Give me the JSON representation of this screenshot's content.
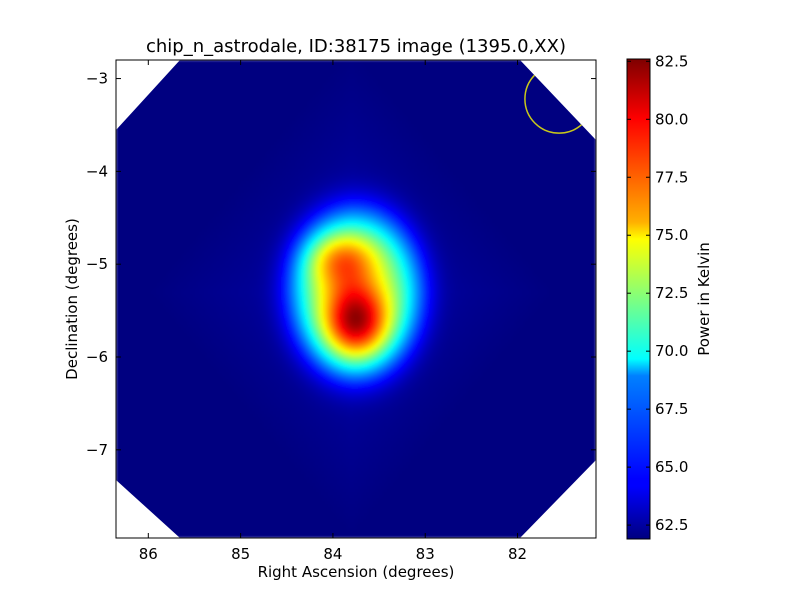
{
  "chart_data": {
    "type": "heatmap",
    "title": "chip_n_astrodale, ID:38175 image (1395.0,XX)",
    "xlabel": "Right Ascension (degrees)",
    "ylabel": "Declination (degrees)",
    "colorbar_label": "Power in Kelvin",
    "colormap": "jet",
    "xlim": [
      86.35,
      81.15
    ],
    "ylim": [
      -7.95,
      -2.8
    ],
    "x_ticks": [
      86,
      85,
      84,
      83,
      82
    ],
    "x_tick_labels": [
      "86",
      "85",
      "84",
      "83",
      "82"
    ],
    "y_ticks": [
      -3,
      -4,
      -5,
      -6,
      -7
    ],
    "y_tick_labels": [
      "−3",
      "−4",
      "−5",
      "−6",
      "−7"
    ],
    "value_range": [
      61.9,
      82.6
    ],
    "colorbar_ticks": [
      82.5,
      80.0,
      77.5,
      75.0,
      72.5,
      70.0,
      67.5,
      65.0,
      62.5
    ],
    "colorbar_tick_labels": [
      "82.5",
      "80.0",
      "77.5",
      "75.0",
      "72.5",
      "70.0",
      "67.5",
      "65.0",
      "62.5"
    ],
    "background_level": 62.8,
    "hot_spots": [
      {
        "ra": 83.75,
        "dec": -5.6,
        "peak": 82.5
      },
      {
        "ra": 83.9,
        "dec": -4.95,
        "peak": 77.5
      }
    ],
    "beam_marker": {
      "shape": "circle",
      "ra": 81.55,
      "dec": -3.22,
      "radius_deg": 0.37,
      "color": "#c8c81a"
    }
  }
}
